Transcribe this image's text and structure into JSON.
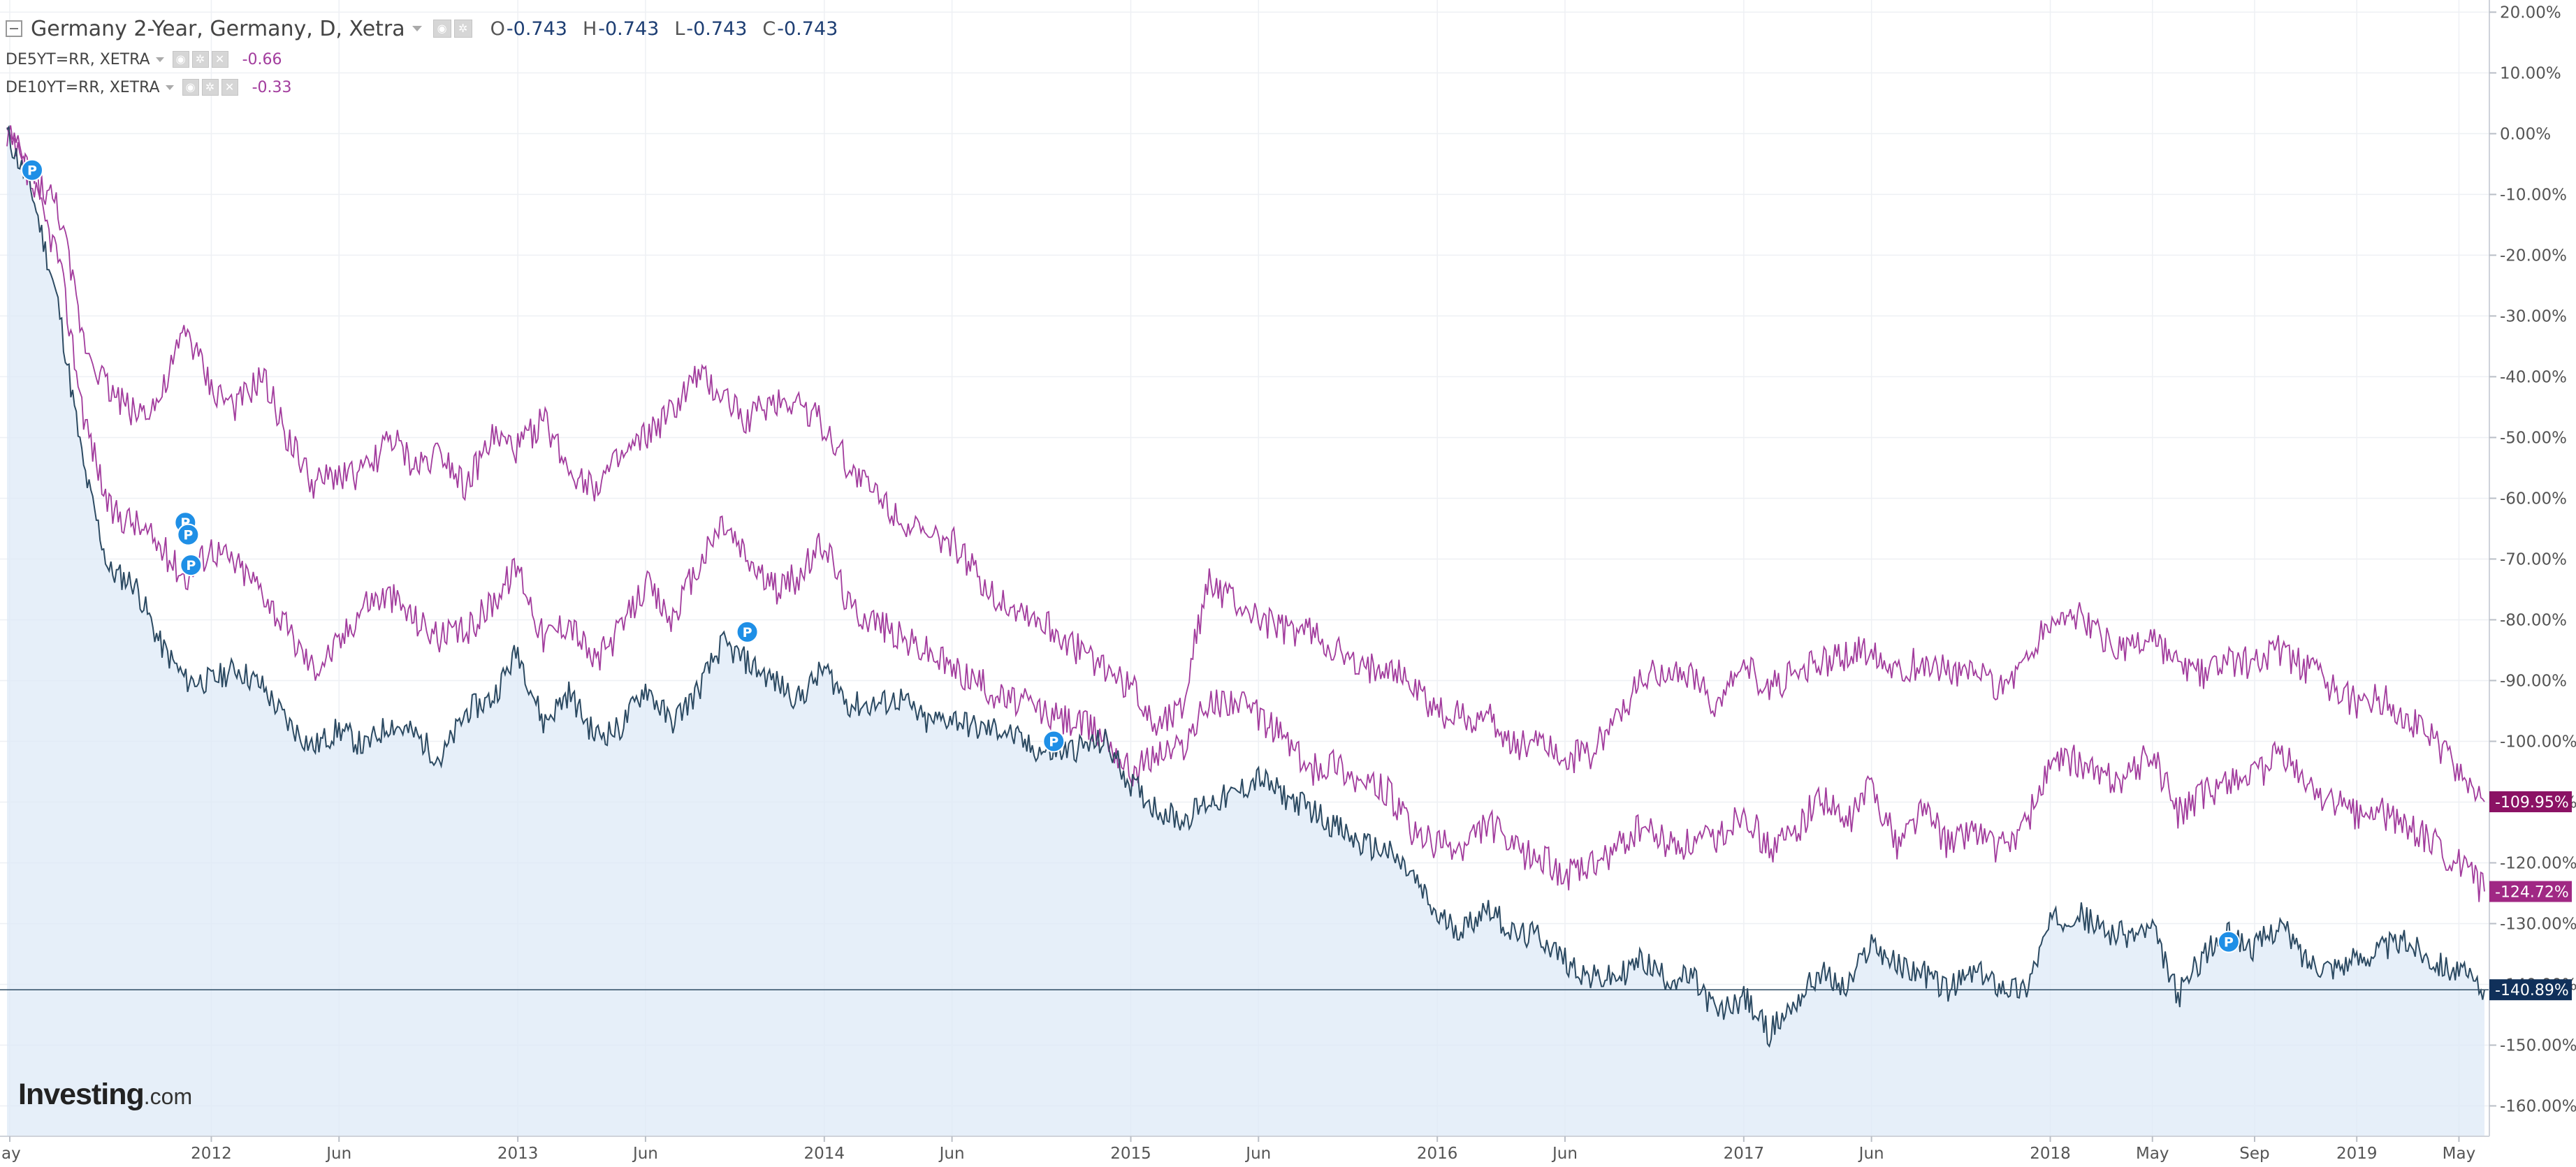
{
  "legend": {
    "main": {
      "title": "Germany 2-Year, Germany, D, Xetra",
      "o_label": "O",
      "o_value": "-0.743",
      "h_label": "H",
      "h_value": "-0.743",
      "l_label": "L",
      "l_value": "-0.743",
      "c_label": "C",
      "c_value": "-0.743"
    },
    "series2": {
      "title": "DE5YT=RR, XETRA",
      "value": "-0.66"
    },
    "series3": {
      "title": "DE10YT=RR, XETRA",
      "value": "-0.33"
    }
  },
  "brand": {
    "name": "Investing",
    "suffix": ".com"
  },
  "colors": {
    "bg": "#ffffff",
    "grid": "#eef0f4",
    "axis": "#cfd3da",
    "series2y": "#2c4a62",
    "series2y_fill": "#dde9f7",
    "series5y": "#a23c9d",
    "series10y": "#a23c9d",
    "tag_2y": "#10305a",
    "tag_5y": "#a02884",
    "tag_10y": "#8b1264",
    "marker": "#1f8fe6"
  },
  "chart_data": {
    "type": "line",
    "title": "",
    "xlabel": "",
    "ylabel": "",
    "ylim": [
      -165,
      22
    ],
    "x_tick_labels": [
      "ay",
      "2012",
      "Jun",
      "2013",
      "Jun",
      "2014",
      "Jun",
      "2015",
      "Jun",
      "2016",
      "Jun",
      "2017",
      "Jun",
      "2018",
      "May",
      "Sep",
      "2019",
      "May"
    ],
    "y_tick_labels": [
      "20.00%",
      "10.00%",
      "0.00%",
      "-10.00%",
      "-20.00%",
      "-30.00%",
      "-40.00%",
      "-50.00%",
      "-60.00%",
      "-70.00%",
      "-80.00%",
      "-90.00%",
      "-100.00%",
      "-110.00%",
      "-120.00%",
      "-130.00%",
      "-140.00%",
      "-150.00%",
      "-160.00%"
    ],
    "y_tick_values": [
      20,
      10,
      0,
      -10,
      -20,
      -30,
      -40,
      -50,
      -60,
      -70,
      -80,
      -90,
      -100,
      -110,
      -120,
      -130,
      -140,
      -150,
      -160
    ],
    "y_unit": "%",
    "x": [
      "2011-05",
      "2011-06",
      "2011-07",
      "2011-08",
      "2011-09",
      "2011-10",
      "2011-11",
      "2011-12",
      "2012-01",
      "2012-02",
      "2012-03",
      "2012-04",
      "2012-05",
      "2012-06",
      "2012-07",
      "2012-08",
      "2012-09",
      "2012-10",
      "2012-11",
      "2012-12",
      "2013-01",
      "2013-02",
      "2013-03",
      "2013-04",
      "2013-05",
      "2013-06",
      "2013-07",
      "2013-08",
      "2013-09",
      "2013-10",
      "2013-11",
      "2013-12",
      "2014-01",
      "2014-02",
      "2014-03",
      "2014-04",
      "2014-05",
      "2014-06",
      "2014-07",
      "2014-08",
      "2014-09",
      "2014-10",
      "2014-11",
      "2014-12",
      "2015-01",
      "2015-02",
      "2015-03",
      "2015-04",
      "2015-05",
      "2015-06",
      "2015-07",
      "2015-08",
      "2015-09",
      "2015-10",
      "2015-11",
      "2015-12",
      "2016-01",
      "2016-02",
      "2016-03",
      "2016-04",
      "2016-05",
      "2016-06",
      "2016-07",
      "2016-08",
      "2016-09",
      "2016-10",
      "2016-11",
      "2016-12",
      "2017-01",
      "2017-02",
      "2017-03",
      "2017-04",
      "2017-05",
      "2017-06",
      "2017-07",
      "2017-08",
      "2017-09",
      "2017-10",
      "2017-11",
      "2017-12",
      "2018-01",
      "2018-02",
      "2018-03",
      "2018-04",
      "2018-05",
      "2018-06",
      "2018-07",
      "2018-08",
      "2018-09",
      "2018-10",
      "2018-11",
      "2018-12",
      "2019-01",
      "2019-02",
      "2019-03",
      "2019-04",
      "2019-05",
      "2019-06"
    ],
    "series": [
      {
        "name": "Germany 2-Year",
        "last_label": "-140.89%",
        "values": [
          0,
          -10,
          -28,
          -55,
          -72,
          -74,
          -84,
          -90,
          -90,
          -88,
          -91,
          -97,
          -101,
          -98,
          -101,
          -97,
          -99,
          -103,
          -95,
          -93,
          -85,
          -97,
          -92,
          -99,
          -98,
          -91,
          -97,
          -92,
          -84,
          -87,
          -90,
          -93,
          -88,
          -94,
          -94,
          -93,
          -97,
          -96,
          -98,
          -98,
          -101,
          -102,
          -101,
          -100,
          -107,
          -111,
          -113,
          -110,
          -109,
          -106,
          -109,
          -111,
          -114,
          -117,
          -118,
          -122,
          -129,
          -131,
          -127,
          -132,
          -132,
          -136,
          -139,
          -139,
          -136,
          -139,
          -139,
          -145,
          -142,
          -148,
          -143,
          -138,
          -141,
          -133,
          -137,
          -138,
          -141,
          -138,
          -140,
          -141,
          -130,
          -128,
          -131,
          -132,
          -131,
          -142,
          -135,
          -132,
          -134,
          -130,
          -136,
          -137,
          -136,
          -134,
          -133,
          -136,
          -138,
          -140.89
        ]
      },
      {
        "name": "DE5YT=RR",
        "last_label": "-124.72%",
        "values": [
          0,
          -9,
          -20,
          -46,
          -62,
          -64,
          -68,
          -73,
          -68,
          -71,
          -75,
          -82,
          -88,
          -84,
          -77,
          -76,
          -80,
          -83,
          -82,
          -77,
          -71,
          -83,
          -80,
          -87,
          -82,
          -74,
          -80,
          -72,
          -64,
          -70,
          -75,
          -73,
          -67,
          -78,
          -80,
          -83,
          -85,
          -88,
          -90,
          -93,
          -94,
          -96,
          -97,
          -99,
          -105,
          -102,
          -101,
          -94,
          -93,
          -96,
          -99,
          -105,
          -103,
          -107,
          -108,
          -115,
          -117,
          -118,
          -113,
          -118,
          -119,
          -122,
          -121,
          -118,
          -114,
          -117,
          -117,
          -116,
          -111,
          -118,
          -115,
          -109,
          -114,
          -107,
          -117,
          -111,
          -117,
          -114,
          -118,
          -114,
          -104,
          -103,
          -106,
          -106,
          -102,
          -112,
          -109,
          -106,
          -106,
          -102,
          -107,
          -110,
          -112,
          -112,
          -114,
          -117,
          -120,
          -124.72
        ]
      },
      {
        "name": "DE10YT=RR",
        "last_label": "-109.95%",
        "values": [
          0,
          -7,
          -12,
          -34,
          -42,
          -46,
          -44,
          -32,
          -42,
          -45,
          -40,
          -50,
          -58,
          -56,
          -56,
          -50,
          -55,
          -52,
          -58,
          -50,
          -52,
          -47,
          -55,
          -58,
          -54,
          -50,
          -46,
          -40,
          -43,
          -47,
          -44,
          -44,
          -48,
          -55,
          -59,
          -63,
          -67,
          -67,
          -73,
          -77,
          -79,
          -82,
          -85,
          -88,
          -91,
          -97,
          -94,
          -74,
          -77,
          -80,
          -82,
          -82,
          -85,
          -89,
          -87,
          -91,
          -95,
          -96,
          -96,
          -101,
          -99,
          -103,
          -102,
          -96,
          -90,
          -88,
          -90,
          -94,
          -88,
          -91,
          -89,
          -87,
          -86,
          -85,
          -88,
          -87,
          -88,
          -89,
          -91,
          -87,
          -80,
          -79,
          -83,
          -85,
          -83,
          -88,
          -89,
          -87,
          -87,
          -85,
          -88,
          -91,
          -94,
          -93,
          -96,
          -100,
          -105,
          -109.95
        ]
      }
    ],
    "reference_line": {
      "series": "Germany 2-Year",
      "value": -140.89
    },
    "event_markers": [
      {
        "label": "P",
        "date": "2011-05",
        "value": -6
      },
      {
        "label": "P",
        "date": "2011-11",
        "value": -64
      },
      {
        "label": "P",
        "date": "2011-11",
        "value": -66
      },
      {
        "label": "P",
        "date": "2011-11",
        "value": -71
      },
      {
        "label": "P",
        "date": "2013-09",
        "value": -82
      },
      {
        "label": "P",
        "date": "2014-09",
        "value": -100
      },
      {
        "label": "P",
        "date": "2018-07",
        "value": -133
      }
    ],
    "grid": true,
    "legend_position": "top-left"
  }
}
